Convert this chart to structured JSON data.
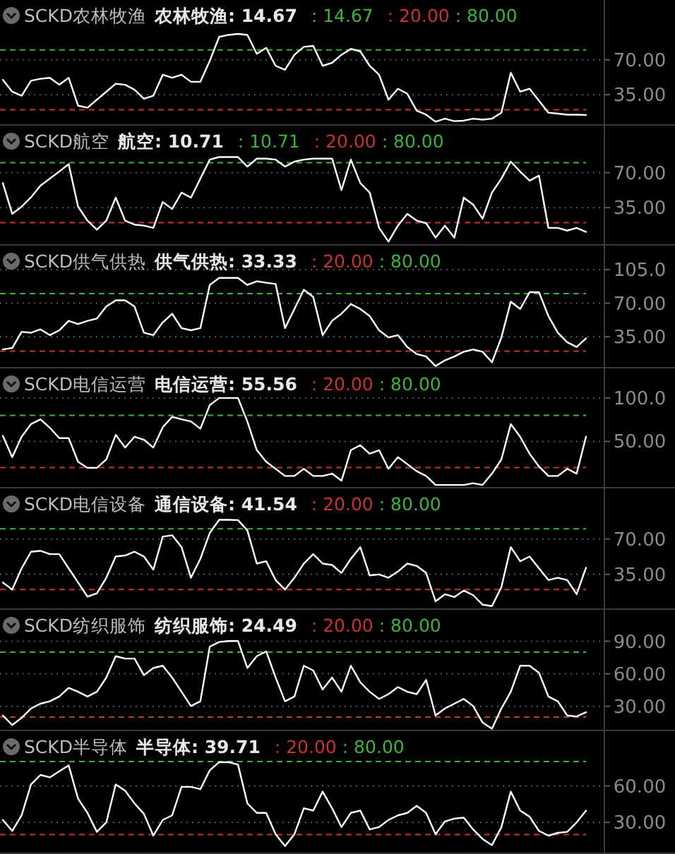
{
  "chart_data": [
    {
      "type": "line",
      "title": "SCKD农林牧渔",
      "grid": "y",
      "ylim": [
        4,
        130
      ],
      "yticks": [
        {
          "value": 35,
          "label": "35.00"
        },
        {
          "value": 70,
          "label": "70.00"
        }
      ],
      "categories": [
        null,
        null,
        null,
        null,
        null,
        null,
        null,
        null,
        null,
        null,
        null,
        null,
        null,
        null,
        null,
        null,
        null,
        null,
        null,
        null,
        null,
        null,
        null,
        null,
        null,
        null,
        null,
        null,
        null,
        null,
        null,
        null,
        null,
        null,
        null,
        null,
        null,
        null,
        null,
        null,
        null,
        null,
        null,
        null,
        null,
        null,
        null,
        null,
        null,
        null,
        null,
        null,
        null,
        null,
        null,
        null,
        null,
        null,
        null,
        null,
        null,
        null,
        null
      ],
      "series": [
        {
          "color": "#ffffff",
          "values": [
            50,
            38,
            34,
            49,
            51,
            52,
            45,
            52,
            24,
            22,
            30,
            38,
            46,
            45,
            40,
            31,
            34,
            55,
            52,
            55,
            48,
            48,
            69,
            93,
            95,
            96,
            95,
            76,
            82,
            64,
            60,
            75,
            83,
            84,
            64,
            67,
            75,
            81,
            78.5,
            64,
            55,
            30,
            41,
            36,
            19,
            15,
            8,
            11,
            8.5,
            9,
            11,
            10,
            11,
            17,
            57,
            38,
            41,
            29,
            17,
            16,
            15,
            15,
            14.67
          ]
        }
      ],
      "ref_lines": [
        {
          "axis": "y",
          "value": 20,
          "label": ": 20.00",
          "color": "#c83232",
          "line_style": "dashed"
        },
        {
          "axis": "y",
          "value": 80,
          "label": ": 80.00",
          "color": "#3cb43c",
          "line_style": "dashed"
        }
      ],
      "annotations": [
        "农林牧渔: 14.67",
        ": 14.67"
      ]
    },
    {
      "type": "line",
      "title": "SCKD航空",
      "grid": "y",
      "ylim": [
        -3,
        117
      ],
      "yticks": [
        {
          "value": 35,
          "label": "35.00"
        },
        {
          "value": 70,
          "label": "70.00"
        }
      ],
      "categories": [
        null,
        null,
        null,
        null,
        null,
        null,
        null,
        null,
        null,
        null,
        null,
        null,
        null,
        null,
        null,
        null,
        null,
        null,
        null,
        null,
        null,
        null,
        null,
        null,
        null,
        null,
        null,
        null,
        null,
        null,
        null,
        null,
        null,
        null,
        null,
        null,
        null,
        null,
        null,
        null,
        null,
        null,
        null,
        null,
        null,
        null,
        null,
        null,
        null,
        null,
        null,
        null,
        null,
        null,
        null,
        null,
        null,
        null,
        null,
        null,
        null,
        null,
        null
      ],
      "series": [
        {
          "color": "#ffffff",
          "values": [
            59.6,
            28.8,
            36,
            45.4,
            57,
            64,
            71,
            78.5,
            36,
            22,
            13,
            22,
            45,
            22,
            18,
            17,
            14.7,
            40.7,
            33.6,
            50,
            45,
            64,
            83,
            85.6,
            85.6,
            85.6,
            76,
            84,
            84,
            83,
            76,
            81,
            83,
            84,
            84,
            84,
            52.5,
            83,
            59.6,
            50,
            14.7,
            1,
            17,
            28.8,
            22,
            19.4,
            5,
            17,
            5,
            45,
            38,
            24,
            50,
            64,
            81,
            71,
            62,
            67,
            14.7,
            14.7,
            12,
            14.7,
            10.71
          ]
        }
      ],
      "ref_lines": [
        {
          "axis": "y",
          "value": 20,
          "label": ": 20.00",
          "color": "#c83232",
          "line_style": "dashed"
        },
        {
          "axis": "y",
          "value": 80,
          "label": ": 80.00",
          "color": "#3cb43c",
          "line_style": "dashed"
        }
      ],
      "annotations": [
        "航空: 10.71",
        ": 10.71"
      ]
    },
    {
      "type": "line",
      "title": "SCKD供气供热",
      "grid": "y",
      "ylim": [
        2,
        130
      ],
      "yticks": [
        {
          "value": 35,
          "label": "35.00"
        },
        {
          "value": 70,
          "label": "70.00"
        },
        {
          "value": 105,
          "label": "105.0"
        }
      ],
      "categories": [
        null,
        null,
        null,
        null,
        null,
        null,
        null,
        null,
        null,
        null,
        null,
        null,
        null,
        null,
        null,
        null,
        null,
        null,
        null,
        null,
        null,
        null,
        null,
        null,
        null,
        null,
        null,
        null,
        null,
        null,
        null,
        null,
        null,
        null,
        null,
        null,
        null,
        null,
        null,
        null,
        null,
        null,
        null,
        null,
        null,
        null,
        null,
        null,
        null,
        null,
        null,
        null,
        null,
        null,
        null,
        null,
        null,
        null,
        null,
        null,
        null,
        null,
        null
      ],
      "series": [
        {
          "color": "#ffffff",
          "values": [
            21.8,
            23.3,
            40.2,
            39.2,
            42.7,
            36.7,
            41.7,
            51.6,
            48.2,
            51.6,
            54,
            66.5,
            73,
            73,
            66.5,
            39.2,
            36.7,
            50,
            59,
            44,
            41.7,
            44,
            89,
            96.3,
            96.3,
            96.3,
            89,
            92.8,
            91.3,
            90,
            44,
            64,
            84,
            76.5,
            36.7,
            51.6,
            59,
            69,
            64,
            56.6,
            41.7,
            34.3,
            36.7,
            24.3,
            17,
            14.4,
            4.5,
            10.4,
            14.4,
            19.4,
            21.8,
            19.4,
            8.4,
            34.3,
            71.5,
            64,
            81.4,
            81.4,
            56.6,
            39.2,
            29.3,
            24.3,
            33.33
          ]
        }
      ],
      "ref_lines": [
        {
          "axis": "y",
          "value": 20,
          "label": ": 20.00",
          "color": "#c83232",
          "line_style": "dashed"
        },
        {
          "axis": "y",
          "value": 80,
          "label": ": 80.00",
          "color": "#3cb43c",
          "line_style": "dashed"
        }
      ],
      "annotations": [
        "供气供热: 33.33"
      ]
    },
    {
      "type": "line",
      "title": "SCKD电信运营",
      "grid": "y",
      "ylim": [
        -4,
        134
      ],
      "yticks": [
        {
          "value": 50,
          "label": "50.00"
        },
        {
          "value": 100,
          "label": "100.0"
        }
      ],
      "categories": [
        null,
        null,
        null,
        null,
        null,
        null,
        null,
        null,
        null,
        null,
        null,
        null,
        null,
        null,
        null,
        null,
        null,
        null,
        null,
        null,
        null,
        null,
        null,
        null,
        null,
        null,
        null,
        null,
        null,
        null,
        null,
        null,
        null,
        null,
        null,
        null,
        null,
        null,
        null,
        null,
        null,
        null,
        null,
        null,
        null,
        null,
        null,
        null,
        null,
        null,
        null,
        null,
        null,
        null,
        null,
        null,
        null,
        null,
        null,
        null,
        null,
        null,
        null
      ],
      "series": [
        {
          "color": "#ffffff",
          "values": [
            56.5,
            32,
            55.4,
            70,
            75.5,
            65.8,
            53.8,
            53.8,
            26.6,
            19.6,
            19.6,
            29.3,
            57.6,
            43,
            55.4,
            52,
            43,
            66.3,
            78.3,
            75.5,
            73,
            64.7,
            91.8,
            100,
            100,
            100,
            72.8,
            40,
            26.6,
            18.5,
            10.3,
            10.3,
            18.5,
            10.3,
            10.3,
            13,
            4.9,
            40,
            45.7,
            35.9,
            40,
            18.5,
            32,
            23.9,
            15.8,
            10.3,
            0,
            0,
            0,
            0,
            2,
            0,
            13,
            29.3,
            70,
            55.4,
            35.9,
            21.2,
            10.3,
            10.3,
            18.5,
            13,
            55.56
          ]
        }
      ],
      "ref_lines": [
        {
          "axis": "y",
          "value": 20,
          "label": ": 20.00",
          "color": "#c83232",
          "line_style": "dashed"
        },
        {
          "axis": "y",
          "value": 80,
          "label": ": 80.00",
          "color": "#3cb43c",
          "line_style": "dashed"
        }
      ],
      "annotations": [
        "电信运营: 55.56"
      ]
    },
    {
      "type": "line",
      "title": "SCKD电信设备",
      "grid": "y",
      "ylim": [
        0,
        120
      ],
      "yticks": [
        {
          "value": 35,
          "label": "35.00"
        },
        {
          "value": 70,
          "label": "70.00"
        }
      ],
      "categories": [
        null,
        null,
        null,
        null,
        null,
        null,
        null,
        null,
        null,
        null,
        null,
        null,
        null,
        null,
        null,
        null,
        null,
        null,
        null,
        null,
        null,
        null,
        null,
        null,
        null,
        null,
        null,
        null,
        null,
        null,
        null,
        null,
        null,
        null,
        null,
        null,
        null,
        null,
        null,
        null,
        null,
        null,
        null,
        null,
        null,
        null,
        null,
        null,
        null,
        null,
        null,
        null,
        null,
        null,
        null,
        null,
        null,
        null,
        null,
        null,
        null,
        null,
        null
      ],
      "series": [
        {
          "color": "#ffffff",
          "values": [
            27,
            20,
            41,
            57.4,
            58.3,
            55,
            55,
            41,
            27,
            13,
            16.3,
            31.7,
            52.7,
            53.7,
            57.4,
            52.7,
            39.7,
            72.3,
            73.7,
            62,
            31.7,
            50.4,
            76,
            89,
            89,
            88.7,
            78.4,
            45.7,
            48,
            29.4,
            20,
            31.7,
            45.7,
            55,
            45.7,
            44.3,
            36.4,
            50.4,
            62,
            34,
            35,
            31.7,
            37.8,
            45.7,
            43.4,
            36.4,
            8.4,
            15.4,
            12.6,
            19.1,
            14.5,
            5.1,
            3.7,
            22.4,
            62,
            48,
            52.7,
            41,
            29.4,
            31.7,
            29.4,
            15.4,
            41.54
          ]
        }
      ],
      "ref_lines": [
        {
          "axis": "y",
          "value": 20,
          "label": ": 20.00",
          "color": "#c83232",
          "line_style": "dashed"
        },
        {
          "axis": "y",
          "value": 80,
          "label": ": 80.00",
          "color": "#3cb43c",
          "line_style": "dashed"
        }
      ],
      "annotations": [
        "通信设备: 41.54"
      ]
    },
    {
      "type": "line",
      "title": "SCKD纺织服饰",
      "grid": "y",
      "ylim": [
        7,
        119
      ],
      "yticks": [
        {
          "value": 30,
          "label": "30.00"
        },
        {
          "value": 60,
          "label": "60.00"
        },
        {
          "value": 90,
          "label": "90.00"
        }
      ],
      "categories": [
        null,
        null,
        null,
        null,
        null,
        null,
        null,
        null,
        null,
        null,
        null,
        null,
        null,
        null,
        null,
        null,
        null,
        null,
        null,
        null,
        null,
        null,
        null,
        null,
        null,
        null,
        null,
        null,
        null,
        null,
        null,
        null,
        null,
        null,
        null,
        null,
        null,
        null,
        null,
        null,
        null,
        null,
        null,
        null,
        null,
        null,
        null,
        null,
        null,
        null,
        null,
        null,
        null,
        null,
        null,
        null,
        null,
        null,
        null,
        null,
        null,
        null,
        null
      ],
      "series": [
        {
          "color": "#ffffff",
          "values": [
            21.5,
            12.7,
            19.3,
            28,
            32.4,
            34.6,
            39,
            46.9,
            43.4,
            39,
            43.4,
            56.5,
            76.2,
            74,
            74,
            58.7,
            65.3,
            67.4,
            56.5,
            43.4,
            30.2,
            34.6,
            85,
            89.3,
            90.2,
            90.2,
            65.3,
            76.2,
            80.6,
            56.5,
            34.6,
            39,
            67.4,
            63,
            45.5,
            56.5,
            43.4,
            67.4,
            52.1,
            43.4,
            36.8,
            41.2,
            47.7,
            43.4,
            41.2,
            54.3,
            21.5,
            28,
            32.4,
            36.8,
            30.2,
            15,
            9.2,
            28,
            43.4,
            67.4,
            67.4,
            60.9,
            39,
            34.6,
            21.5,
            20.6,
            24.49
          ]
        }
      ],
      "ref_lines": [
        {
          "axis": "y",
          "value": 20,
          "label": ": 20.00",
          "color": "#c83232",
          "line_style": "dashed"
        },
        {
          "axis": "y",
          "value": 80,
          "label": ": 80.00",
          "color": "#3cb43c",
          "line_style": "dashed"
        }
      ],
      "annotations": [
        "纺织服饰: 24.49"
      ]
    },
    {
      "type": "line",
      "title": "SCKD半导体",
      "grid": "y",
      "ylim": [
        4,
        105
      ],
      "yticks": [
        {
          "value": 30,
          "label": "30.00"
        },
        {
          "value": 60,
          "label": "60.00"
        }
      ],
      "categories": [
        null,
        null,
        null,
        null,
        null,
        null,
        null,
        null,
        null,
        null,
        null,
        null,
        null,
        null,
        null,
        null,
        null,
        null,
        null,
        null,
        null,
        null,
        null,
        null,
        null,
        null,
        null,
        null,
        null,
        null,
        null,
        null,
        null,
        null,
        null,
        null,
        null,
        null,
        null,
        null,
        null,
        null,
        null,
        null,
        null,
        null,
        null,
        null,
        null,
        null,
        null,
        null,
        null,
        null,
        null,
        null,
        null,
        null,
        null,
        null,
        null,
        null,
        null
      ],
      "series": [
        {
          "color": "#ffffff",
          "values": [
            32,
            23,
            35.8,
            61.2,
            69,
            67,
            72.1,
            76.8,
            49.5,
            37.8,
            22.2,
            30,
            61.2,
            56.1,
            45.6,
            37,
            19.1,
            32,
            35.8,
            59.2,
            59.2,
            57.3,
            72.9,
            79.5,
            79.5,
            77.5,
            45.6,
            37.8,
            37.8,
            20.3,
            10.5,
            20.3,
            41.7,
            39.7,
            55.3,
            41.7,
            26.1,
            37.8,
            39.7,
            24.2,
            26.1,
            32,
            35.8,
            37.8,
            43.6,
            37.8,
            20.3,
            30.8,
            33.1,
            33.9,
            24.2,
            16.4,
            11.3,
            26.1,
            55.3,
            39.7,
            34.7,
            23,
            19.1,
            21.4,
            22.2,
            30,
            39.71
          ]
        }
      ],
      "ref_lines": [
        {
          "axis": "y",
          "value": 20,
          "label": ": 20.00",
          "color": "#c83232",
          "line_style": "dashed"
        },
        {
          "axis": "y",
          "value": 80,
          "label": ": 80.00",
          "color": "#3cb43c",
          "line_style": "dashed"
        }
      ],
      "annotations": [
        "半导体: 39.71"
      ]
    }
  ]
}
